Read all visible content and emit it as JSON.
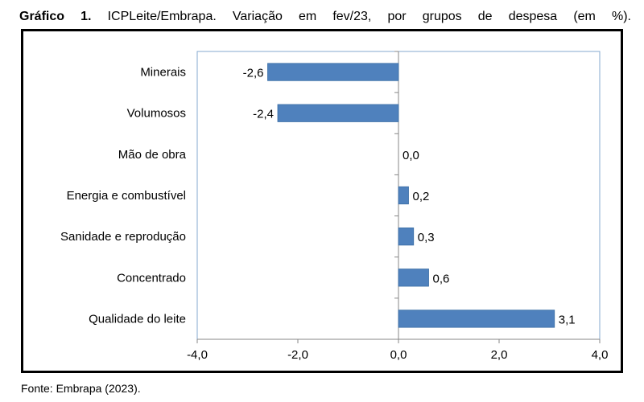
{
  "caption": {
    "prefix": "Gráfico 1.",
    "text": "ICPLeite/Embrapa. Variação em fev/23, por grupos de despesa (em %)."
  },
  "source": "Fonte: Embrapa (2023).",
  "colors": {
    "bar": "#4f81bd",
    "bar_edge": "#3a6ea5",
    "plot_border": "#86a8cf",
    "axis": "#878787"
  },
  "chart_data": {
    "type": "bar",
    "orientation": "horizontal",
    "categories": [
      "Minerais",
      "Volumosos",
      "Mão de obra",
      "Energia e combustível",
      "Sanidade e reprodução",
      "Concentrado",
      "Qualidade do leite"
    ],
    "values": [
      -2.6,
      -2.4,
      0.0,
      0.2,
      0.3,
      0.6,
      3.1
    ],
    "value_labels": [
      "-2,6",
      "-2,4",
      "0,0",
      "0,2",
      "0,3",
      "0,6",
      "3,1"
    ],
    "xlim": [
      -4.0,
      4.0
    ],
    "xticks": [
      -4.0,
      -2.0,
      0.0,
      2.0,
      4.0
    ],
    "xtick_labels": [
      "-4,0",
      "-2,0",
      "0,0",
      "2,0",
      "4,0"
    ],
    "grid": false,
    "legend": "none"
  }
}
